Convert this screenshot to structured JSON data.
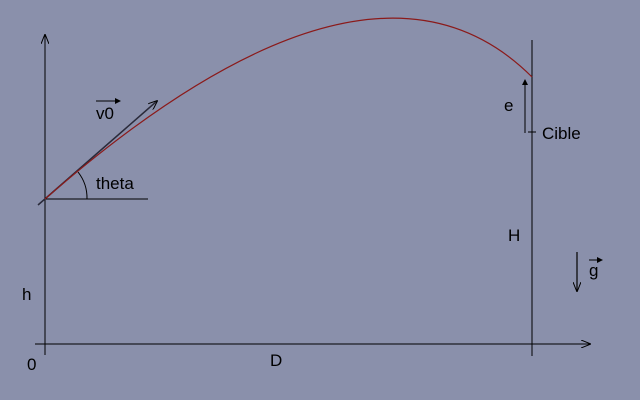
{
  "labels": {
    "v0": "v0",
    "theta": "theta",
    "h": "h",
    "origin": "0",
    "d": "D",
    "h_upper": "H",
    "e": "e",
    "cible": "Cible",
    "g": "g"
  },
  "colors": {
    "background": "#8a90ab",
    "axes": "#000000",
    "trajectory": "#8b1a1a",
    "velocity_vector": "#2a2a3a"
  }
}
